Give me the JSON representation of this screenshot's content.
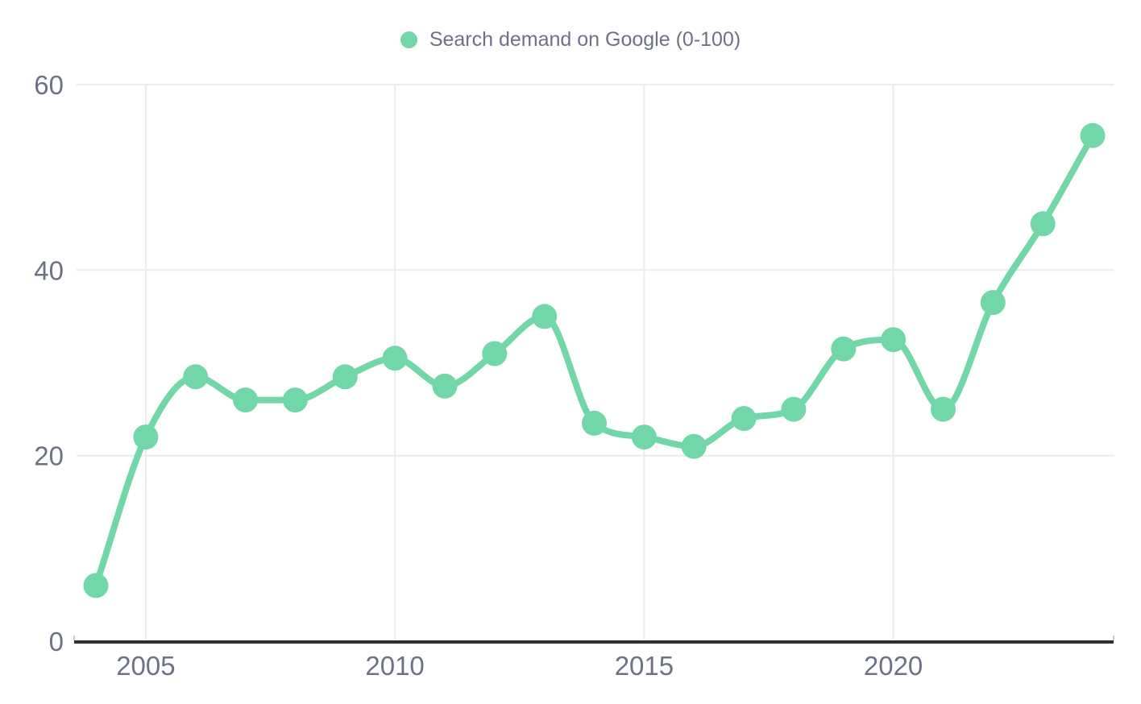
{
  "legend": {
    "label": "Search demand on Google (0-100)"
  },
  "chart_data": {
    "type": "line",
    "title": "",
    "xlabel": "",
    "ylabel": "",
    "x": [
      2004,
      2005,
      2006,
      2007,
      2008,
      2009,
      2010,
      2011,
      2012,
      2013,
      2014,
      2015,
      2016,
      2017,
      2018,
      2019,
      2020,
      2021,
      2022,
      2023,
      2024
    ],
    "series": [
      {
        "name": "Search demand on Google (0-100)",
        "color": "#72d7a8",
        "values": [
          6,
          22,
          28.5,
          26,
          26,
          28.5,
          30.5,
          27.5,
          31,
          35,
          23.5,
          22,
          21,
          24,
          25,
          31.5,
          32.5,
          25,
          36.5,
          45,
          54.5
        ]
      }
    ],
    "x_ticks": [
      2005,
      2010,
      2015,
      2020
    ],
    "y_ticks": [
      0,
      20,
      40,
      60
    ],
    "ylim": [
      0,
      60
    ],
    "grid": true,
    "legend_position": "top-center",
    "colors": {
      "accent": "#72d7a8",
      "axis_text": "#6d7186",
      "grid": "#ececec",
      "axis_line": "#2f3136",
      "background": "#ffffff"
    }
  }
}
